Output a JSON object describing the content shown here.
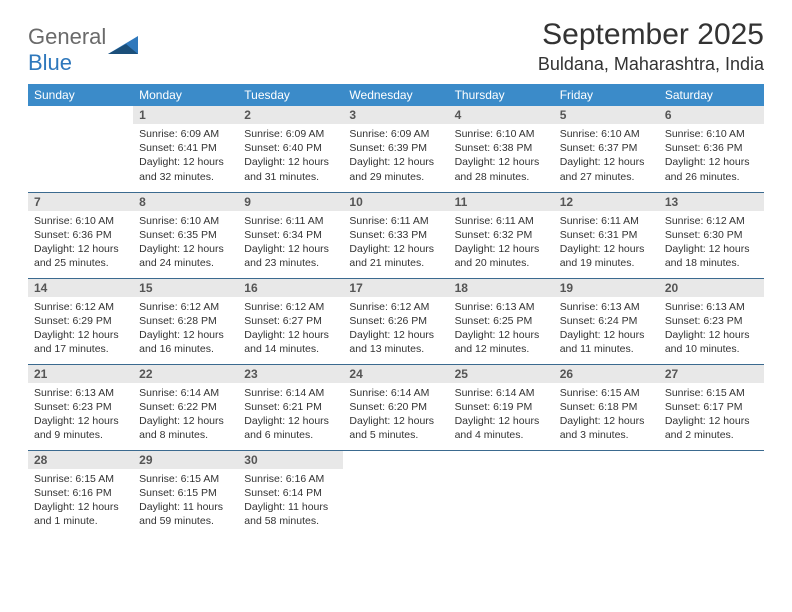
{
  "logo": {
    "word1": "General",
    "word2": "Blue"
  },
  "title": "September 2025",
  "location": "Buldana, Maharashtra, India",
  "colors": {
    "header_bg": "#3b8bc9",
    "header_text": "#ffffff",
    "daynum_bg": "#e8e8e8",
    "border": "#3b6a8f",
    "logo_gray": "#6a6a6a",
    "logo_blue": "#2f78bc"
  },
  "weekdays": [
    "Sunday",
    "Monday",
    "Tuesday",
    "Wednesday",
    "Thursday",
    "Friday",
    "Saturday"
  ],
  "weeks": [
    [
      null,
      {
        "n": 1,
        "sr": "6:09 AM",
        "ss": "6:41 PM",
        "dl": "12 hours and 32 minutes."
      },
      {
        "n": 2,
        "sr": "6:09 AM",
        "ss": "6:40 PM",
        "dl": "12 hours and 31 minutes."
      },
      {
        "n": 3,
        "sr": "6:09 AM",
        "ss": "6:39 PM",
        "dl": "12 hours and 29 minutes."
      },
      {
        "n": 4,
        "sr": "6:10 AM",
        "ss": "6:38 PM",
        "dl": "12 hours and 28 minutes."
      },
      {
        "n": 5,
        "sr": "6:10 AM",
        "ss": "6:37 PM",
        "dl": "12 hours and 27 minutes."
      },
      {
        "n": 6,
        "sr": "6:10 AM",
        "ss": "6:36 PM",
        "dl": "12 hours and 26 minutes."
      }
    ],
    [
      {
        "n": 7,
        "sr": "6:10 AM",
        "ss": "6:36 PM",
        "dl": "12 hours and 25 minutes."
      },
      {
        "n": 8,
        "sr": "6:10 AM",
        "ss": "6:35 PM",
        "dl": "12 hours and 24 minutes."
      },
      {
        "n": 9,
        "sr": "6:11 AM",
        "ss": "6:34 PM",
        "dl": "12 hours and 23 minutes."
      },
      {
        "n": 10,
        "sr": "6:11 AM",
        "ss": "6:33 PM",
        "dl": "12 hours and 21 minutes."
      },
      {
        "n": 11,
        "sr": "6:11 AM",
        "ss": "6:32 PM",
        "dl": "12 hours and 20 minutes."
      },
      {
        "n": 12,
        "sr": "6:11 AM",
        "ss": "6:31 PM",
        "dl": "12 hours and 19 minutes."
      },
      {
        "n": 13,
        "sr": "6:12 AM",
        "ss": "6:30 PM",
        "dl": "12 hours and 18 minutes."
      }
    ],
    [
      {
        "n": 14,
        "sr": "6:12 AM",
        "ss": "6:29 PM",
        "dl": "12 hours and 17 minutes."
      },
      {
        "n": 15,
        "sr": "6:12 AM",
        "ss": "6:28 PM",
        "dl": "12 hours and 16 minutes."
      },
      {
        "n": 16,
        "sr": "6:12 AM",
        "ss": "6:27 PM",
        "dl": "12 hours and 14 minutes."
      },
      {
        "n": 17,
        "sr": "6:12 AM",
        "ss": "6:26 PM",
        "dl": "12 hours and 13 minutes."
      },
      {
        "n": 18,
        "sr": "6:13 AM",
        "ss": "6:25 PM",
        "dl": "12 hours and 12 minutes."
      },
      {
        "n": 19,
        "sr": "6:13 AM",
        "ss": "6:24 PM",
        "dl": "12 hours and 11 minutes."
      },
      {
        "n": 20,
        "sr": "6:13 AM",
        "ss": "6:23 PM",
        "dl": "12 hours and 10 minutes."
      }
    ],
    [
      {
        "n": 21,
        "sr": "6:13 AM",
        "ss": "6:23 PM",
        "dl": "12 hours and 9 minutes."
      },
      {
        "n": 22,
        "sr": "6:14 AM",
        "ss": "6:22 PM",
        "dl": "12 hours and 8 minutes."
      },
      {
        "n": 23,
        "sr": "6:14 AM",
        "ss": "6:21 PM",
        "dl": "12 hours and 6 minutes."
      },
      {
        "n": 24,
        "sr": "6:14 AM",
        "ss": "6:20 PM",
        "dl": "12 hours and 5 minutes."
      },
      {
        "n": 25,
        "sr": "6:14 AM",
        "ss": "6:19 PM",
        "dl": "12 hours and 4 minutes."
      },
      {
        "n": 26,
        "sr": "6:15 AM",
        "ss": "6:18 PM",
        "dl": "12 hours and 3 minutes."
      },
      {
        "n": 27,
        "sr": "6:15 AM",
        "ss": "6:17 PM",
        "dl": "12 hours and 2 minutes."
      }
    ],
    [
      {
        "n": 28,
        "sr": "6:15 AM",
        "ss": "6:16 PM",
        "dl": "12 hours and 1 minute."
      },
      {
        "n": 29,
        "sr": "6:15 AM",
        "ss": "6:15 PM",
        "dl": "11 hours and 59 minutes."
      },
      {
        "n": 30,
        "sr": "6:16 AM",
        "ss": "6:14 PM",
        "dl": "11 hours and 58 minutes."
      },
      null,
      null,
      null,
      null
    ]
  ],
  "labels": {
    "sunrise": "Sunrise:",
    "sunset": "Sunset:",
    "daylight": "Daylight:"
  }
}
